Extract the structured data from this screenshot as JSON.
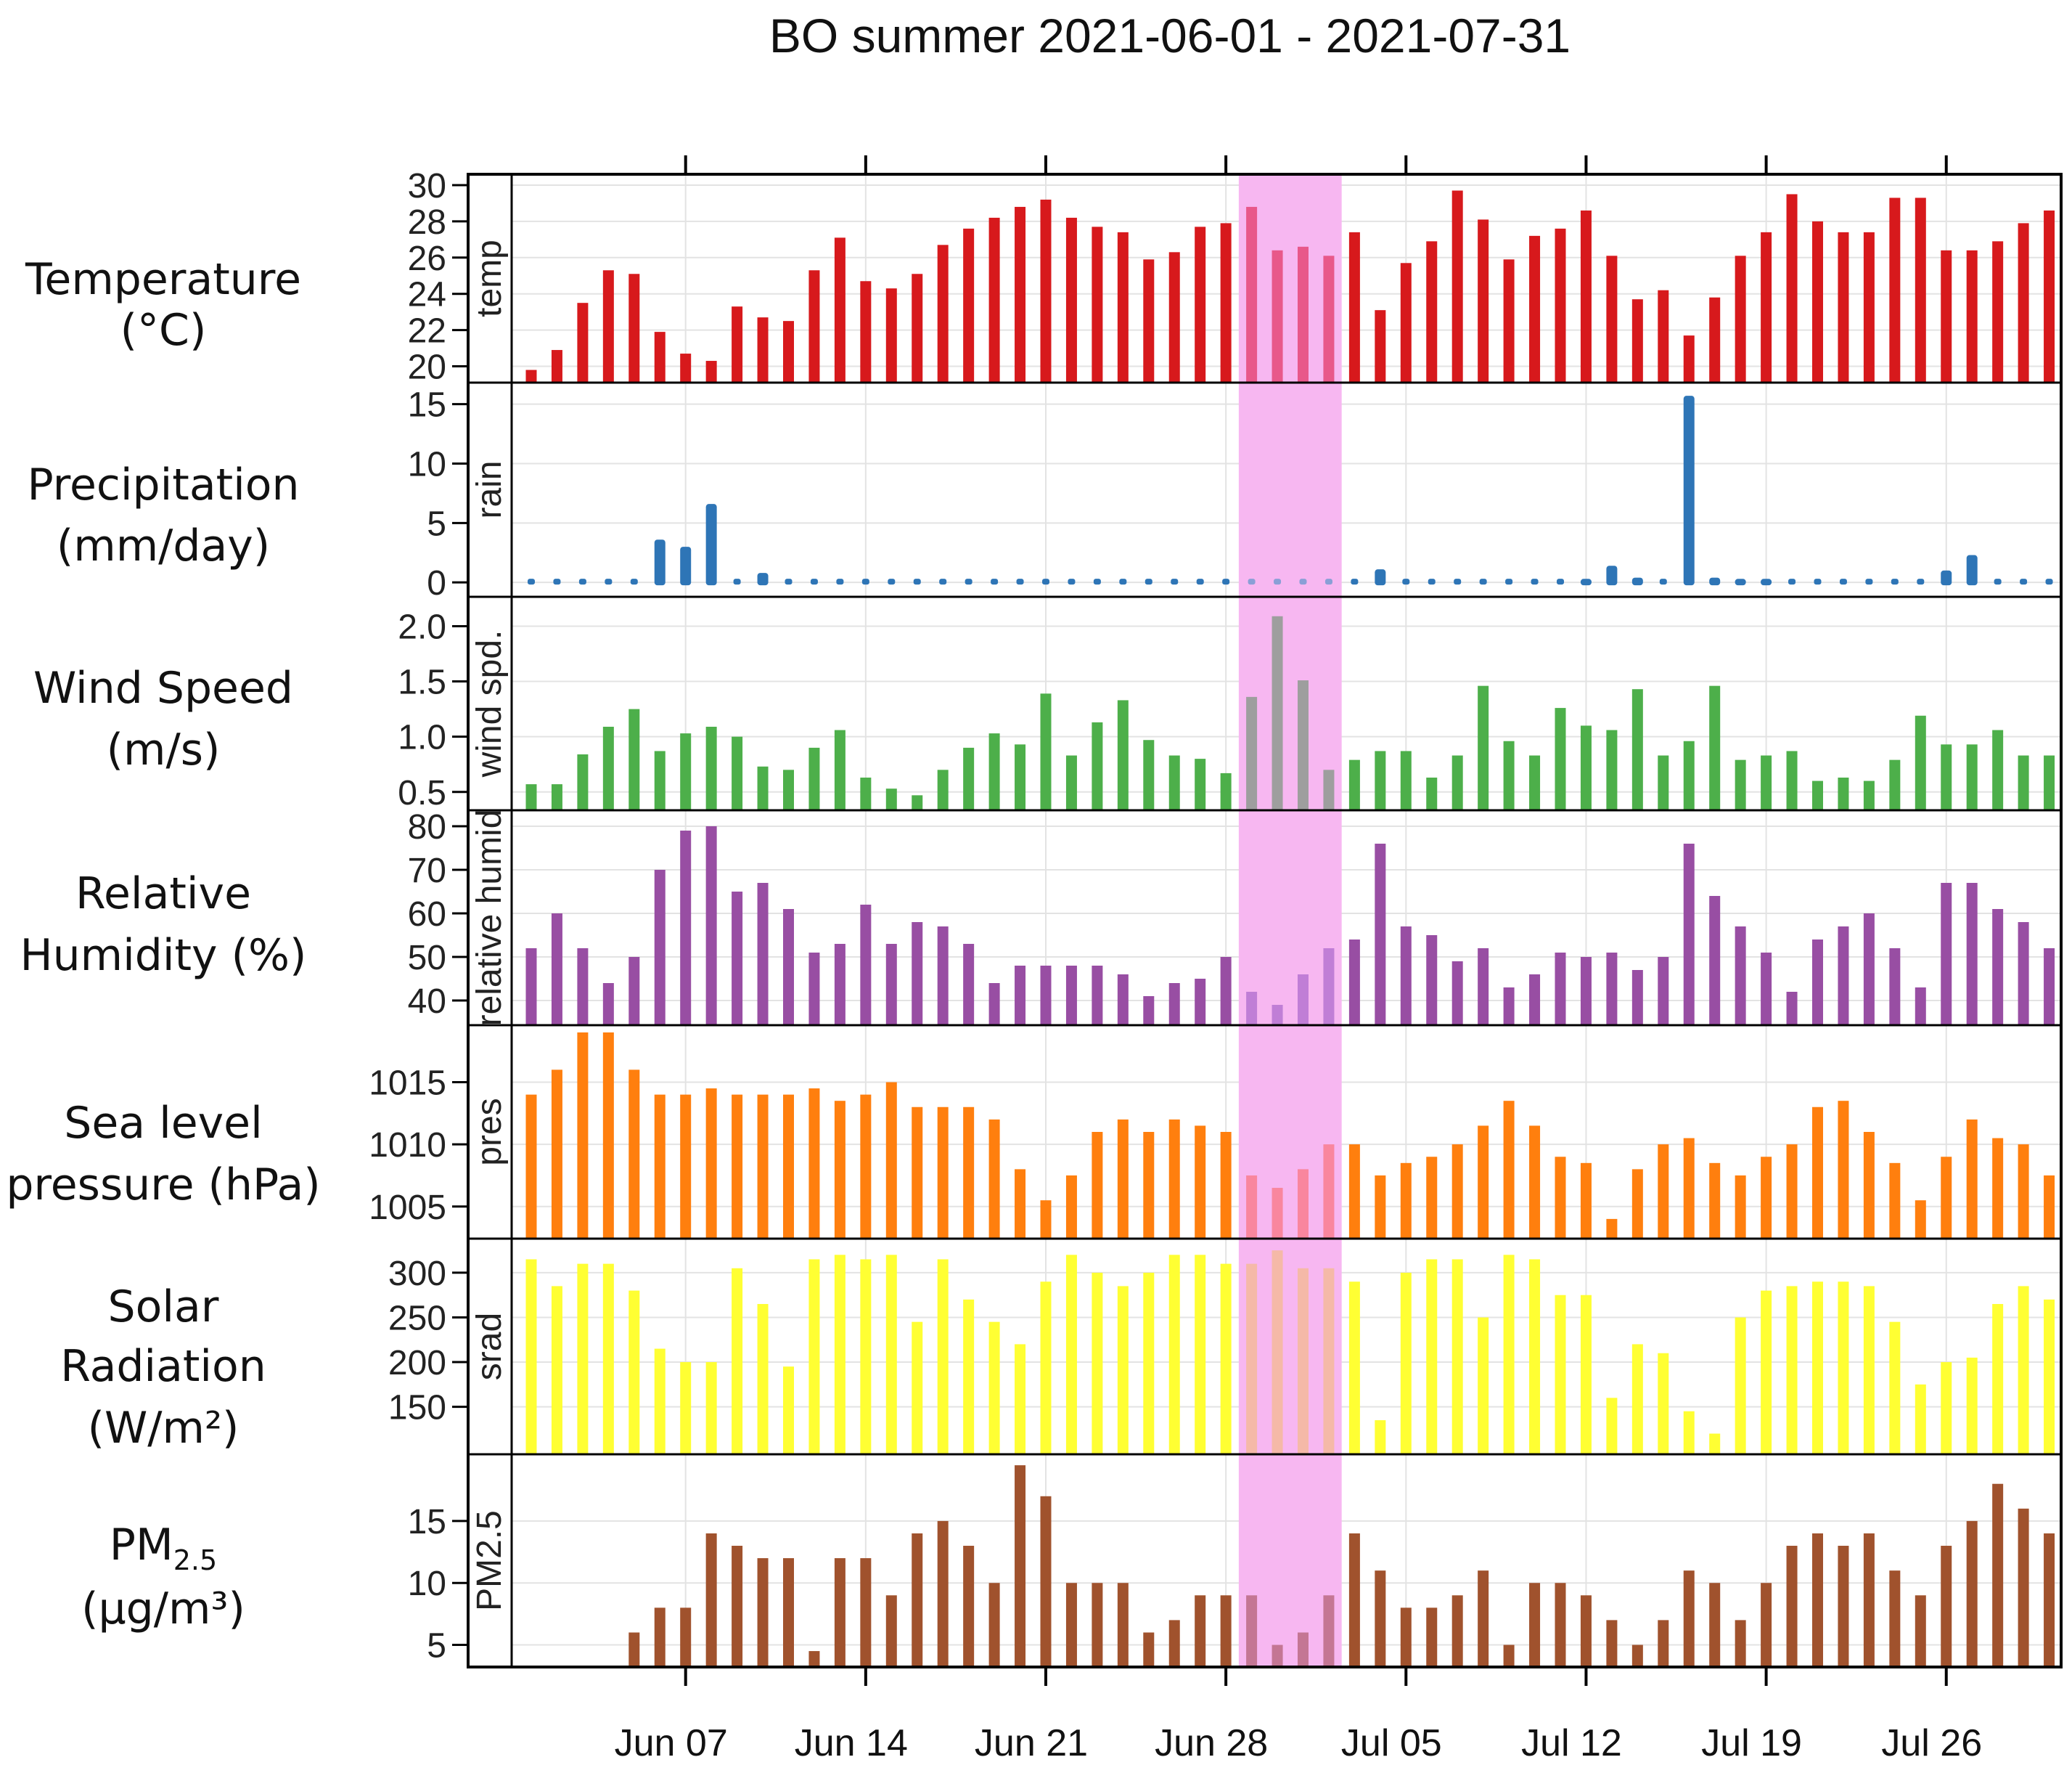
{
  "chart_data": {
    "type": "bar",
    "title": "BO summer 2021-06-01 - 2021-07-31",
    "x_start": "2021-06-01",
    "x_end": "2021-07-30",
    "highlight": {
      "from": "2021-06-29",
      "to": "2021-07-02",
      "color": "#f7b7f1"
    },
    "x_ticks": [
      {
        "label": "Jun 07",
        "date": "2021-06-07"
      },
      {
        "label": "Jun 14",
        "date": "2021-06-14"
      },
      {
        "label": "Jun 21",
        "date": "2021-06-21"
      },
      {
        "label": "Jun 28",
        "date": "2021-06-28"
      },
      {
        "label": "Jul 05",
        "date": "2021-07-05"
      },
      {
        "label": "Jul 12",
        "date": "2021-07-12"
      },
      {
        "label": "Jul 19",
        "date": "2021-07-19"
      },
      {
        "label": "Jul 26",
        "date": "2021-07-26"
      }
    ],
    "grid": true,
    "panels": [
      {
        "key": "temp",
        "strip": "temp",
        "label_lines": [
          "Temperature",
          "(°C)"
        ],
        "color": "#d7191c",
        "highlight_color": "#e8588a",
        "ylim": [
          19.5,
          30.2
        ],
        "yticks": [
          20,
          22,
          24,
          26,
          28,
          30
        ],
        "values": [
          19.8,
          20.9,
          23.5,
          25.3,
          25.1,
          21.9,
          20.7,
          20.3,
          23.3,
          22.7,
          22.5,
          25.3,
          27.1,
          24.7,
          24.3,
          25.1,
          26.7,
          27.6,
          28.2,
          28.8,
          29.2,
          28.2,
          27.7,
          27.4,
          25.9,
          26.3,
          27.7,
          27.9,
          28.8,
          26.4,
          26.6,
          26.1,
          27.4,
          23.1,
          25.7,
          26.9,
          29.7,
          28.1,
          25.9,
          27.2,
          27.6,
          28.6,
          26.1,
          23.7,
          24.2,
          21.7,
          23.8,
          26.1,
          27.4,
          29.5,
          28.0,
          27.4,
          27.4,
          29.3,
          29.3,
          26.4,
          26.4,
          26.9,
          27.9,
          28.6
        ]
      },
      {
        "key": "rain",
        "strip": "rain",
        "label_lines": [
          "Precipitation",
          "(mm/day)"
        ],
        "color": "#2e75b6",
        "highlight_color": "#8a9fd6",
        "ylim": [
          -0.6,
          16.2
        ],
        "yticks": [
          0,
          5,
          10,
          15
        ],
        "values": [
          0,
          0,
          0,
          0,
          0,
          3.6,
          3,
          6.6,
          0,
          0.8,
          0,
          0,
          0,
          0,
          0,
          0,
          0,
          0,
          0,
          0,
          0,
          0,
          0,
          0,
          0,
          0,
          0,
          0,
          0,
          0,
          0,
          0,
          0,
          1.1,
          0,
          0,
          0,
          0,
          0,
          0,
          0,
          0.3,
          1.4,
          0.4,
          0,
          15.7,
          0.4,
          0.3,
          0.3,
          0,
          0,
          0,
          0,
          0,
          0,
          1.0,
          2.3,
          0,
          0,
          0
        ]
      },
      {
        "key": "wind",
        "strip": "wind spd.",
        "label_lines": [
          "Wind Speed",
          "(m/s)"
        ],
        "color": "#4daf4a",
        "highlight_color": "#9e9e9e",
        "ylim": [
          0.4,
          2.2
        ],
        "yticks": [
          0.5,
          1.0,
          1.5,
          2.0
        ],
        "ytick_labels": [
          "0.5",
          "1.0",
          "1.5",
          "2.0"
        ],
        "values": [
          0.57,
          0.57,
          0.84,
          1.09,
          1.25,
          0.87,
          1.03,
          1.09,
          1.0,
          0.73,
          0.7,
          0.9,
          1.06,
          0.63,
          0.53,
          0.47,
          0.7,
          0.9,
          1.03,
          0.93,
          1.39,
          0.83,
          1.13,
          1.33,
          0.97,
          0.83,
          0.8,
          0.67,
          1.36,
          2.09,
          1.51,
          0.7,
          0.79,
          0.87,
          0.87,
          0.63,
          0.83,
          1.46,
          0.96,
          0.83,
          1.26,
          1.1,
          1.06,
          1.43,
          0.83,
          0.96,
          1.46,
          0.79,
          0.83,
          0.87,
          0.6,
          0.63,
          0.6,
          0.79,
          1.19,
          0.93,
          0.93,
          1.06,
          0.83,
          0.83
        ]
      },
      {
        "key": "rh",
        "strip": "relative humid",
        "label_lines": [
          "Relative",
          "Humidity (%)"
        ],
        "color": "#984ea3",
        "highlight_color": "#c07ed6",
        "ylim": [
          36,
          82
        ],
        "yticks": [
          40,
          50,
          60,
          70,
          80
        ],
        "values": [
          52,
          60,
          52,
          44,
          50,
          70,
          79,
          80,
          65,
          67,
          61,
          51,
          53,
          62,
          53,
          58,
          57,
          53,
          44,
          48,
          48,
          48,
          48,
          46,
          41,
          44,
          45,
          50,
          42,
          39,
          46,
          52,
          54,
          76,
          57,
          55,
          49,
          52,
          43,
          46,
          51,
          50,
          51,
          47,
          50,
          76,
          64,
          57,
          51,
          42,
          54,
          57,
          60,
          52,
          43,
          67,
          67,
          61,
          58,
          52
        ]
      },
      {
        "key": "pres",
        "strip": "pres",
        "label_lines": [
          "Sea level",
          "pressure (hPa)"
        ],
        "color": "#ff7f0e",
        "highlight_color": "#f9869e",
        "ylim": [
          1003.0,
          1019.0
        ],
        "yticks": [
          1005,
          1010,
          1015
        ],
        "values": [
          1014,
          1016,
          1019,
          1019,
          1016,
          1014,
          1014,
          1014.5,
          1014,
          1014,
          1014,
          1014.5,
          1013.5,
          1014,
          1015,
          1013,
          1013,
          1013,
          1012,
          1008,
          1005.5,
          1007.5,
          1011,
          1012,
          1011,
          1012,
          1011.5,
          1011,
          1007.5,
          1006.5,
          1008,
          1010,
          1010,
          1007.5,
          1008.5,
          1009,
          1010,
          1011.5,
          1013.5,
          1011.5,
          1009,
          1008.5,
          1004,
          1008,
          1010,
          1010.5,
          1008.5,
          1007.5,
          1009,
          1010,
          1013,
          1013.5,
          1011,
          1008.5,
          1005.5,
          1009,
          1012,
          1010.5,
          1010,
          1007.5
        ]
      },
      {
        "key": "srad",
        "strip": "srad",
        "label_lines": [
          "Solar",
          "Radiation",
          "(W/m²)"
        ],
        "color": "#ffff33",
        "highlight_color": "#f5b9a8",
        "ylim": [
          105,
          330
        ],
        "yticks": [
          150,
          200,
          250,
          300
        ],
        "values": [
          315,
          285,
          310,
          310,
          280,
          215,
          200,
          200,
          305,
          265,
          195,
          315,
          320,
          315,
          320,
          245,
          315,
          270,
          245,
          220,
          290,
          320,
          300,
          285,
          300,
          320,
          320,
          310,
          310,
          325,
          305,
          305,
          290,
          135,
          300,
          315,
          315,
          250,
          320,
          315,
          275,
          275,
          160,
          220,
          210,
          145,
          120,
          250,
          280,
          285,
          290,
          290,
          285,
          245,
          175,
          200,
          205,
          265,
          285,
          270
        ]
      },
      {
        "key": "pm25",
        "strip": "PM2.5",
        "label_lines": [
          "PM2.5",
          "(μg/m³)"
        ],
        "color": "#a0522d",
        "highlight_color": "#c47694",
        "ylim": [
          3.8,
          19.8
        ],
        "yticks": [
          5,
          10,
          15
        ],
        "values": [
          null,
          null,
          null,
          null,
          6,
          8,
          8,
          14,
          13,
          12,
          12,
          4.5,
          12,
          12,
          9,
          14,
          15,
          13,
          10,
          19.5,
          17,
          10,
          10,
          10,
          6,
          7,
          9,
          9,
          9,
          5,
          6,
          9,
          14,
          11,
          8,
          8,
          9,
          11,
          5,
          10,
          10,
          9,
          7,
          5,
          7,
          11,
          10,
          7,
          10,
          13,
          14,
          13,
          14,
          11,
          9,
          13,
          15,
          18,
          16,
          14
        ]
      }
    ]
  }
}
